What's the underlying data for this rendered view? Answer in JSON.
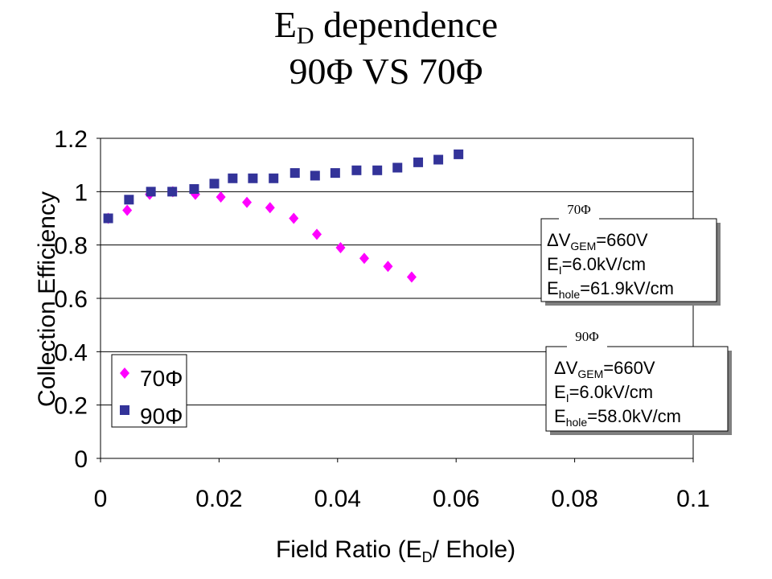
{
  "title": {
    "line1_main": "E",
    "line1_sub": "D",
    "line1_rest": " dependence",
    "line2": "90Φ VS 70Φ"
  },
  "chart_data": {
    "type": "scatter",
    "title": "ED dependence 90Φ VS 70Φ",
    "xlabel_parts": [
      "Field Ratio (E",
      "D",
      "/ Ehole)"
    ],
    "ylabel": "Collection Efficiency",
    "xlim": [
      0,
      0.1
    ],
    "ylim": [
      0,
      1.2
    ],
    "x_ticks": [
      0,
      0.02,
      0.04,
      0.06,
      0.08,
      0.1
    ],
    "x_tick_labels": [
      "0",
      "0.02",
      "0.04",
      "0.06",
      "0.08",
      "0.1"
    ],
    "y_ticks": [
      0,
      0.2,
      0.4,
      0.6,
      0.8,
      1.0,
      1.2
    ],
    "y_tick_labels": [
      "0",
      "0.2",
      "0.4",
      "0.6",
      "0.8",
      "1",
      "1.2"
    ],
    "grid": "horizontal",
    "legend_position": "bottom-left",
    "series": [
      {
        "name": "70Φ",
        "marker": "diamond",
        "color": "#ff00ff",
        "x": [
          0.0013,
          0.0045,
          0.0083,
          0.0122,
          0.016,
          0.0203,
          0.0247,
          0.0286,
          0.0326,
          0.0365,
          0.0405,
          0.0445,
          0.0485,
          0.0525
        ],
        "y": [
          0.9,
          0.93,
          0.99,
          1.0,
          0.99,
          0.98,
          0.96,
          0.94,
          0.9,
          0.84,
          0.79,
          0.75,
          0.72,
          0.68
        ]
      },
      {
        "name": "90Φ",
        "marker": "square",
        "color": "#333399",
        "x": [
          0.0013,
          0.0048,
          0.0085,
          0.0121,
          0.0158,
          0.0192,
          0.0223,
          0.0257,
          0.0292,
          0.0328,
          0.0362,
          0.0396,
          0.0432,
          0.0467,
          0.0501,
          0.0536,
          0.057,
          0.0604
        ],
        "y": [
          0.9,
          0.97,
          1.0,
          1.0,
          1.01,
          1.03,
          1.05,
          1.05,
          1.05,
          1.07,
          1.06,
          1.07,
          1.08,
          1.08,
          1.09,
          1.11,
          1.12,
          1.14
        ]
      }
    ],
    "annotations": [
      {
        "caption": "70Φ",
        "lines": [
          {
            "main": "ΔV",
            "sub": "GEM",
            "rest": "=660V"
          },
          {
            "main": "E",
            "sub": "I",
            "rest": "=6.0kV/cm"
          },
          {
            "main": "E",
            "sub": "hole",
            "rest": "=61.9kV/cm"
          }
        ]
      },
      {
        "caption": "90Φ",
        "lines": [
          {
            "main": "ΔV",
            "sub": "GEM",
            "rest": "=660V"
          },
          {
            "main": "E",
            "sub": "I",
            "rest": "=6.0kV/cm"
          },
          {
            "main": "E",
            "sub": "hole",
            "rest": "=58.0kV/cm"
          }
        ]
      }
    ]
  }
}
